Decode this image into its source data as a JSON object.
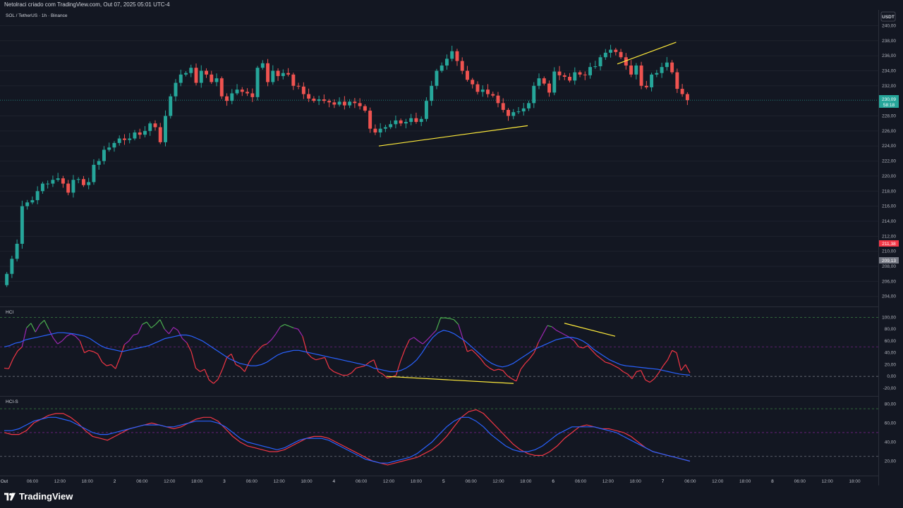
{
  "header": {
    "publish_line": "Netolraci criado com TradingView.com, Out 07, 2025 05:01 UTC-4"
  },
  "footer": {
    "brand": "TradingView"
  },
  "colors": {
    "background": "#131722",
    "up": "#26a69a",
    "down": "#ef5350",
    "grid": "#1e222d",
    "hci_line_red": "#f23645",
    "hci_line_blue": "#2962ff",
    "divergence": "#ffeb3b",
    "overbought": "#4caf50",
    "mid": "#9c27b0"
  },
  "chart_data": [
    {
      "type": "candlestick",
      "title": "SOL / TetherUS · 1h · Binance",
      "currency_badge": "USDT",
      "ylim": [
        203.6,
        240.6
      ],
      "y_ticks": [
        "240,00",
        "238,00",
        "236,00",
        "234,00",
        "232,00",
        "228,00",
        "226,00",
        "224,00",
        "222,00",
        "220,00",
        "218,00",
        "216,00",
        "214,00",
        "212,00",
        "210,00",
        "208,00",
        "206,00",
        "204,00"
      ],
      "last_price": "230,09",
      "countdown": "58:18",
      "marker_red": "211,38",
      "marker_gray": "209,13",
      "x_ticks": [
        "Out",
        "06:00",
        "12:00",
        "18:00",
        "2",
        "06:00",
        "12:00",
        "18:00",
        "3",
        "06:00",
        "12:00",
        "18:00",
        "4",
        "06:00",
        "12:00",
        "18:00",
        "5",
        "06:00",
        "12:00",
        "18:00",
        "6",
        "06:00",
        "12:00",
        "18:00",
        "7",
        "06:00",
        "12:00",
        "18:00",
        "8",
        "06:00",
        "12:00",
        "18:00"
      ],
      "trendlines": [
        {
          "from": [
            "3 12:00",
            224.0
          ],
          "to": [
            "4 18:00",
            226.7
          ]
        },
        {
          "from": [
            "5 18:00",
            234.9
          ],
          "to": [
            "6 18:00",
            237.8
          ]
        }
      ],
      "closes": [
        207,
        209,
        211,
        216,
        216.5,
        216.8,
        218,
        219,
        219,
        219.5,
        219.7,
        219,
        217.8,
        219.5,
        219.6,
        218.8,
        219.2,
        221.5,
        222,
        223.5,
        223.8,
        224.4,
        225,
        224.8,
        225,
        225.8,
        225.5,
        226,
        227,
        226.5,
        224.5,
        228,
        230.6,
        232.4,
        233.5,
        233.7,
        234.4,
        232.4,
        234,
        233.5,
        232.5,
        233,
        230.6,
        230,
        231,
        231.5,
        231.2,
        231,
        230.5,
        234.4,
        235,
        232.5,
        234,
        233.3,
        233.7,
        233.5,
        232,
        231.9,
        230.9,
        230.3,
        230,
        230.2,
        230,
        229.8,
        229.5,
        229.9,
        229.4,
        229.9,
        229.7,
        229.3,
        228.7,
        226.3,
        225.8,
        226.3,
        226.5,
        226.9,
        227.4,
        227,
        227.2,
        227.7,
        227.2,
        227.6,
        230,
        232,
        234,
        234.7,
        235.6,
        236.6,
        235.3,
        234,
        232.8,
        232.2,
        231.2,
        231.5,
        230.9,
        230.7,
        229.7,
        228.8,
        228,
        228.5,
        228.6,
        229,
        229.7,
        232,
        233,
        232.3,
        231.1,
        233.9,
        233.4,
        233.2,
        232.7,
        233.8,
        233.5,
        233.4,
        234.5,
        234.6,
        235.8,
        236.4,
        236.8,
        236.5,
        235.8,
        234.7,
        233.5,
        234.7,
        232,
        231.8,
        233.5,
        233.7,
        234.5,
        235.1,
        233.8,
        231.6,
        230.9,
        230.1
      ],
      "highs": null
    },
    {
      "type": "line",
      "title": "HCI",
      "ylim": [
        -26,
        104
      ],
      "y_ticks": [
        "100,00",
        "80,00",
        "60,00",
        "40,00",
        "20,00",
        "0,00",
        "-20,00"
      ],
      "levels": [
        100,
        50,
        0
      ],
      "series": [
        {
          "name": "",
          "color": "#f23645",
          "values": [
            14,
            13,
            30,
            43,
            50,
            82,
            90,
            75,
            88,
            95,
            80,
            65,
            55,
            60,
            68,
            72,
            68,
            60,
            40,
            44,
            42,
            38,
            24,
            18,
            20,
            13,
            32,
            54,
            60,
            70,
            72,
            88,
            92,
            82,
            88,
            96,
            80,
            72,
            83,
            78,
            64,
            57,
            42,
            14,
            8,
            12,
            -6,
            -12,
            -5,
            12,
            32,
            38,
            20,
            16,
            8,
            24,
            36,
            44,
            52,
            55,
            62,
            72,
            84,
            88,
            85,
            82,
            80,
            68,
            40,
            32,
            28,
            30,
            32,
            14,
            8,
            5,
            2,
            2,
            6,
            14,
            16,
            18,
            24,
            28,
            8,
            4,
            -3,
            -1,
            2,
            26,
            46,
            62,
            66,
            60,
            55,
            62,
            70,
            78,
            99,
            99,
            98,
            96,
            88,
            64,
            42,
            45,
            38,
            30,
            20,
            14,
            10,
            12,
            10,
            1,
            -4,
            -8,
            12,
            22,
            30,
            40,
            58,
            72,
            86,
            84,
            78,
            74,
            70,
            66,
            60,
            50,
            48,
            52,
            44,
            36,
            30,
            24,
            22,
            18,
            14,
            8,
            4,
            -4,
            8,
            10,
            -6,
            -10,
            -4,
            6,
            18,
            28,
            44,
            40,
            10,
            20,
            6
          ],
          "highs": null
        },
        {
          "name": "",
          "color": "#2962ff",
          "values": [
            50,
            52,
            56,
            58,
            62,
            64,
            66,
            68,
            70,
            72,
            74,
            74,
            73,
            72,
            70,
            68,
            64,
            58,
            52,
            48,
            46,
            44,
            42,
            44,
            46,
            48,
            50,
            52,
            56,
            60,
            64,
            66,
            68,
            70,
            70,
            68,
            64,
            60,
            54,
            48,
            42,
            36,
            30,
            26,
            22,
            20,
            18,
            18,
            20,
            24,
            30,
            36,
            40,
            42,
            44,
            44,
            42,
            40,
            38,
            36,
            34,
            32,
            30,
            28,
            26,
            24,
            22,
            20,
            18,
            14,
            12,
            10,
            8,
            8,
            10,
            14,
            20,
            28,
            40,
            54,
            66,
            74,
            78,
            76,
            72,
            66,
            60,
            52,
            44,
            36,
            28,
            22,
            18,
            16,
            18,
            22,
            28,
            34,
            40,
            46,
            50,
            54,
            58,
            62,
            64,
            66,
            66,
            64,
            60,
            54,
            46,
            40,
            34,
            28,
            24,
            20,
            18,
            17,
            16,
            15,
            14,
            13,
            12,
            10,
            8,
            6,
            4,
            3,
            2
          ]
        }
      ]
    },
    {
      "type": "line",
      "title": "HCI-S",
      "ylim": [
        10,
        84
      ],
      "y_ticks": [
        "80,00",
        "60,00",
        "40,00",
        "20,00"
      ],
      "levels": [
        75,
        50,
        25
      ],
      "series": [
        {
          "name": "",
          "color": "#f23645",
          "values": [
            50,
            48,
            48,
            52,
            60,
            64,
            68,
            70,
            70,
            66,
            60,
            52,
            46,
            44,
            42,
            46,
            50,
            54,
            56,
            58,
            60,
            58,
            56,
            54,
            56,
            60,
            64,
            66,
            66,
            62,
            54,
            46,
            40,
            36,
            34,
            32,
            30,
            30,
            32,
            36,
            40,
            44,
            46,
            46,
            44,
            40,
            36,
            32,
            28,
            24,
            20,
            18,
            16,
            18,
            20,
            22,
            24,
            28,
            32,
            38,
            46,
            56,
            66,
            72,
            74,
            70,
            62,
            54,
            46,
            38,
            32,
            28,
            26,
            26,
            30,
            36,
            44,
            50,
            56,
            58,
            56,
            54,
            54,
            52,
            50,
            46,
            40,
            34,
            30,
            28,
            26,
            24,
            22,
            20
          ]
        },
        {
          "name": "",
          "color": "#2962ff",
          "values": [
            52,
            52,
            54,
            58,
            62,
            64,
            66,
            66,
            64,
            62,
            58,
            54,
            50,
            48,
            48,
            50,
            52,
            54,
            56,
            58,
            58,
            58,
            56,
            56,
            58,
            60,
            62,
            62,
            62,
            60,
            56,
            50,
            44,
            40,
            38,
            36,
            34,
            32,
            34,
            38,
            42,
            44,
            44,
            44,
            42,
            38,
            34,
            30,
            26,
            22,
            20,
            18,
            18,
            20,
            22,
            24,
            28,
            34,
            40,
            48,
            56,
            62,
            66,
            66,
            62,
            56,
            48,
            42,
            36,
            32,
            30,
            30,
            32,
            36,
            42,
            48,
            52,
            56,
            56,
            56,
            56,
            54,
            52,
            50,
            46,
            42,
            38,
            34,
            30,
            28,
            26,
            24,
            22,
            20
          ]
        }
      ]
    }
  ]
}
